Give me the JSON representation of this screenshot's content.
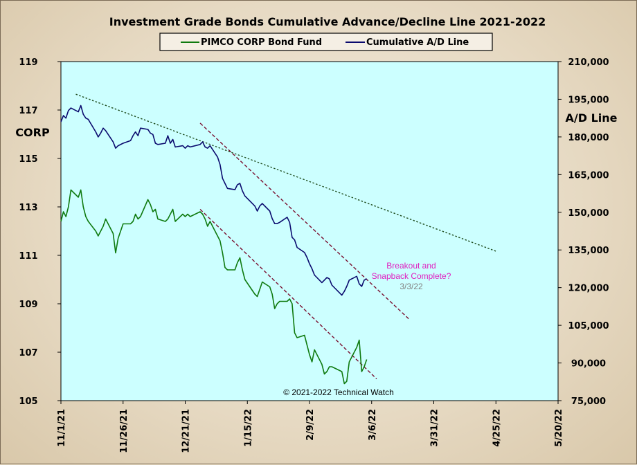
{
  "chart_data": {
    "type": "line",
    "title": "Investment  Grade Bonds Cumulative  Advance/Decline  Line 2021-2022",
    "left_axis": {
      "label": "CORP",
      "ticks": [
        "105",
        "107",
        "109",
        "111",
        "113",
        "115",
        "117",
        "119"
      ],
      "range": [
        105,
        119
      ]
    },
    "right_axis": {
      "label": "A/D Line",
      "ticks": [
        "75,000",
        "90,000",
        "105,000",
        "120,000",
        "135,000",
        "150,000",
        "165,000",
        "180,000",
        "195,000",
        "210,000"
      ],
      "range": [
        75000,
        210000
      ]
    },
    "x_axis": {
      "ticks": [
        "11/1/21",
        "11/26/21",
        "12/21/21",
        "1/15/22",
        "2/9/22",
        "3/6/22",
        "3/31/22",
        "4/25/22",
        "5/20/22"
      ],
      "start": "2021-11-01",
      "end": "2022-05-20"
    },
    "legend": {
      "position": "top-center",
      "entries": [
        "PIMCO CORP Bond Fund",
        "Cumulative A/D Line"
      ]
    },
    "series": [
      {
        "name": "PIMCO CORP Bond Fund",
        "axis": "left",
        "color": "#0f7a0f",
        "points": [
          [
            "2021-11-01",
            112.4
          ],
          [
            "2021-11-02",
            112.8
          ],
          [
            "2021-11-03",
            112.6
          ],
          [
            "2021-11-04",
            113.0
          ],
          [
            "2021-11-05",
            113.7
          ],
          [
            "2021-11-08",
            113.4
          ],
          [
            "2021-11-09",
            113.7
          ],
          [
            "2021-11-10",
            113.0
          ],
          [
            "2021-11-11",
            112.6
          ],
          [
            "2021-11-12",
            112.4
          ],
          [
            "2021-11-15",
            112.0
          ],
          [
            "2021-11-16",
            111.8
          ],
          [
            "2021-11-17",
            112.0
          ],
          [
            "2021-11-18",
            112.2
          ],
          [
            "2021-11-19",
            112.5
          ],
          [
            "2021-11-22",
            111.9
          ],
          [
            "2021-11-23",
            111.1
          ],
          [
            "2021-11-24",
            111.7
          ],
          [
            "2021-11-26",
            112.3
          ],
          [
            "2021-11-29",
            112.3
          ],
          [
            "2021-11-30",
            112.4
          ],
          [
            "2021-12-01",
            112.7
          ],
          [
            "2021-12-02",
            112.5
          ],
          [
            "2021-12-03",
            112.6
          ],
          [
            "2021-12-06",
            113.3
          ],
          [
            "2021-12-07",
            113.1
          ],
          [
            "2021-12-08",
            112.8
          ],
          [
            "2021-12-09",
            112.9
          ],
          [
            "2021-12-10",
            112.5
          ],
          [
            "2021-12-13",
            112.4
          ],
          [
            "2021-12-14",
            112.5
          ],
          [
            "2021-12-15",
            112.7
          ],
          [
            "2021-12-16",
            112.9
          ],
          [
            "2021-12-17",
            112.4
          ],
          [
            "2021-12-20",
            112.7
          ],
          [
            "2021-12-21",
            112.6
          ],
          [
            "2021-12-22",
            112.7
          ],
          [
            "2021-12-23",
            112.6
          ],
          [
            "2021-12-27",
            112.8
          ],
          [
            "2021-12-28",
            112.7
          ],
          [
            "2021-12-29",
            112.5
          ],
          [
            "2021-12-30",
            112.2
          ],
          [
            "2021-12-31",
            112.4
          ],
          [
            "2022-01-03",
            111.8
          ],
          [
            "2022-01-04",
            111.6
          ],
          [
            "2022-01-05",
            111.1
          ],
          [
            "2022-01-06",
            110.5
          ],
          [
            "2022-01-07",
            110.4
          ],
          [
            "2022-01-10",
            110.4
          ],
          [
            "2022-01-11",
            110.7
          ],
          [
            "2022-01-12",
            110.9
          ],
          [
            "2022-01-13",
            110.4
          ],
          [
            "2022-01-14",
            110.0
          ],
          [
            "2022-01-18",
            109.4
          ],
          [
            "2022-01-19",
            109.3
          ],
          [
            "2022-01-20",
            109.6
          ],
          [
            "2022-01-21",
            109.9
          ],
          [
            "2022-01-24",
            109.7
          ],
          [
            "2022-01-25",
            109.4
          ],
          [
            "2022-01-26",
            108.8
          ],
          [
            "2022-01-27",
            109.0
          ],
          [
            "2022-01-28",
            109.1
          ],
          [
            "2022-01-31",
            109.1
          ],
          [
            "2022-02-01",
            109.2
          ],
          [
            "2022-02-02",
            109.0
          ],
          [
            "2022-02-03",
            107.8
          ],
          [
            "2022-02-04",
            107.6
          ],
          [
            "2022-02-07",
            107.7
          ],
          [
            "2022-02-08",
            107.3
          ],
          [
            "2022-02-09",
            106.9
          ],
          [
            "2022-02-10",
            106.6
          ],
          [
            "2022-02-11",
            107.1
          ],
          [
            "2022-02-14",
            106.5
          ],
          [
            "2022-02-15",
            106.1
          ],
          [
            "2022-02-16",
            106.2
          ],
          [
            "2022-02-17",
            106.4
          ],
          [
            "2022-02-18",
            106.4
          ],
          [
            "2022-02-22",
            106.2
          ],
          [
            "2022-02-23",
            105.7
          ],
          [
            "2022-02-24",
            105.8
          ],
          [
            "2022-02-25",
            106.6
          ],
          [
            "2022-02-28",
            107.2
          ],
          [
            "2022-03-01",
            107.5
          ],
          [
            "2022-03-02",
            106.2
          ],
          [
            "2022-03-03",
            106.4
          ],
          [
            "2022-03-04",
            106.7
          ]
        ]
      },
      {
        "name": "Cumulative A/D Line",
        "axis": "right",
        "color": "#0a0a6e",
        "points": [
          [
            "2021-11-01",
            186000
          ],
          [
            "2021-11-02",
            188500
          ],
          [
            "2021-11-03",
            187500
          ],
          [
            "2021-11-04",
            190500
          ],
          [
            "2021-11-05",
            191500
          ],
          [
            "2021-11-08",
            190000
          ],
          [
            "2021-11-09",
            192500
          ],
          [
            "2021-11-10",
            189000
          ],
          [
            "2021-11-11",
            187500
          ],
          [
            "2021-11-12",
            187000
          ],
          [
            "2021-11-15",
            182000
          ],
          [
            "2021-11-16",
            180000
          ],
          [
            "2021-11-17",
            181500
          ],
          [
            "2021-11-18",
            183500
          ],
          [
            "2021-11-19",
            182500
          ],
          [
            "2021-11-22",
            178000
          ],
          [
            "2021-11-23",
            175500
          ],
          [
            "2021-11-24",
            176500
          ],
          [
            "2021-11-26",
            177500
          ],
          [
            "2021-11-29",
            178500
          ],
          [
            "2021-11-30",
            180500
          ],
          [
            "2021-12-01",
            182000
          ],
          [
            "2021-12-02",
            180500
          ],
          [
            "2021-12-03",
            183500
          ],
          [
            "2021-12-06",
            183000
          ],
          [
            "2021-12-07",
            181500
          ],
          [
            "2021-12-08",
            181000
          ],
          [
            "2021-12-09",
            177500
          ],
          [
            "2021-12-10",
            177000
          ],
          [
            "2021-12-13",
            177500
          ],
          [
            "2021-12-14",
            180500
          ],
          [
            "2021-12-15",
            177500
          ],
          [
            "2021-12-16",
            179000
          ],
          [
            "2021-12-17",
            176000
          ],
          [
            "2021-12-20",
            176500
          ],
          [
            "2021-12-21",
            175500
          ],
          [
            "2021-12-22",
            176500
          ],
          [
            "2021-12-23",
            176000
          ],
          [
            "2021-12-27",
            177000
          ],
          [
            "2021-12-28",
            178000
          ],
          [
            "2021-12-29",
            176000
          ],
          [
            "2021-12-30",
            175500
          ],
          [
            "2021-12-31",
            176500
          ],
          [
            "2022-01-03",
            172000
          ],
          [
            "2022-01-04",
            169000
          ],
          [
            "2022-01-05",
            163500
          ],
          [
            "2022-01-06",
            161500
          ],
          [
            "2022-01-07",
            159500
          ],
          [
            "2022-01-10",
            159000
          ],
          [
            "2022-01-11",
            161000
          ],
          [
            "2022-01-12",
            161500
          ],
          [
            "2022-01-13",
            158500
          ],
          [
            "2022-01-14",
            156500
          ],
          [
            "2022-01-18",
            152500
          ],
          [
            "2022-01-19",
            150500
          ],
          [
            "2022-01-20",
            152500
          ],
          [
            "2022-01-21",
            153500
          ],
          [
            "2022-01-24",
            150500
          ],
          [
            "2022-01-25",
            147500
          ],
          [
            "2022-01-26",
            145500
          ],
          [
            "2022-01-27",
            145500
          ],
          [
            "2022-01-28",
            146000
          ],
          [
            "2022-01-31",
            148000
          ],
          [
            "2022-02-01",
            146000
          ],
          [
            "2022-02-02",
            140000
          ],
          [
            "2022-02-03",
            139000
          ],
          [
            "2022-02-04",
            136000
          ],
          [
            "2022-02-07",
            134000
          ],
          [
            "2022-02-08",
            132000
          ],
          [
            "2022-02-09",
            129500
          ],
          [
            "2022-02-10",
            127500
          ],
          [
            "2022-02-11",
            125000
          ],
          [
            "2022-02-14",
            122000
          ],
          [
            "2022-02-15",
            123000
          ],
          [
            "2022-02-16",
            124000
          ],
          [
            "2022-02-17",
            123500
          ],
          [
            "2022-02-18",
            121000
          ],
          [
            "2022-02-22",
            117000
          ],
          [
            "2022-02-23",
            118500
          ],
          [
            "2022-02-24",
            120500
          ],
          [
            "2022-02-25",
            123000
          ],
          [
            "2022-02-28",
            124500
          ],
          [
            "2022-03-01",
            121500
          ],
          [
            "2022-03-02",
            120500
          ],
          [
            "2022-03-03",
            123000
          ],
          [
            "2022-03-04",
            123500
          ]
        ]
      }
    ],
    "trendlines": [
      {
        "axis": "right",
        "color": "#1f4d1f",
        "dash": "dot",
        "from": [
          "2021-11-07",
          197000
        ],
        "to": [
          "2022-04-25",
          134500
        ]
      },
      {
        "axis": "right",
        "color": "#7a1030",
        "dash": "dash",
        "from": [
          "2021-12-27",
          185500
        ],
        "to": [
          "2022-03-21",
          107500
        ]
      },
      {
        "axis": "left",
        "color": "#7a1030",
        "dash": "dash",
        "from": [
          "2021-12-27",
          112.9
        ],
        "to": [
          "2022-03-08",
          105.9
        ]
      }
    ],
    "annotations": [
      {
        "lines": [
          "Breakout and",
          "Snapback Complete?"
        ],
        "color": "#e020c0"
      },
      {
        "lines": [
          "3/3/22"
        ],
        "color": "#808080"
      }
    ],
    "copyright": "© 2021-2022  Technical Watch",
    "plot_background": "#ccffff"
  }
}
